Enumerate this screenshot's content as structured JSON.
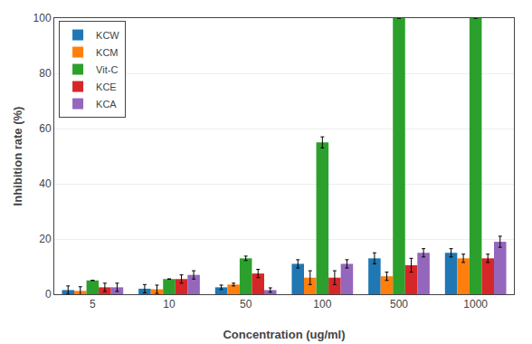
{
  "chart_data": {
    "type": "bar",
    "xlabel": "Concentration (ug/ml)",
    "ylabel": "Inhibition rate (%)",
    "categories": [
      "5",
      "10",
      "50",
      "100",
      "500",
      "1000"
    ],
    "series": [
      {
        "name": "KCW",
        "values": [
          1.5,
          2.0,
          2.5,
          11.0,
          13.0,
          15.0
        ],
        "errors": [
          1.5,
          1.5,
          0.8,
          1.5,
          2.0,
          1.5
        ]
      },
      {
        "name": "KCM",
        "values": [
          1.2,
          1.8,
          3.5,
          6.0,
          6.5,
          13.0
        ],
        "errors": [
          1.5,
          1.5,
          0.5,
          2.5,
          1.5,
          1.5
        ]
      },
      {
        "name": "Vit-C",
        "values": [
          5.0,
          5.5,
          13.0,
          55.0,
          100.0,
          100.0
        ],
        "errors": [
          0.0,
          0.0,
          0.8,
          2.0,
          0.0,
          0.0
        ]
      },
      {
        "name": "KCE",
        "values": [
          2.5,
          5.5,
          7.5,
          6.0,
          10.5,
          13.0
        ],
        "errors": [
          1.5,
          1.5,
          1.5,
          2.5,
          2.5,
          1.5
        ]
      },
      {
        "name": "KCA",
        "values": [
          2.5,
          7.0,
          1.5,
          11.0,
          15.0,
          19.0
        ],
        "errors": [
          1.5,
          1.5,
          0.8,
          1.5,
          1.5,
          2.0
        ]
      }
    ],
    "ylim": [
      0,
      100
    ],
    "yticks": [
      0,
      20,
      40,
      60,
      80,
      100
    ],
    "grid": true,
    "legend": "upper left"
  }
}
